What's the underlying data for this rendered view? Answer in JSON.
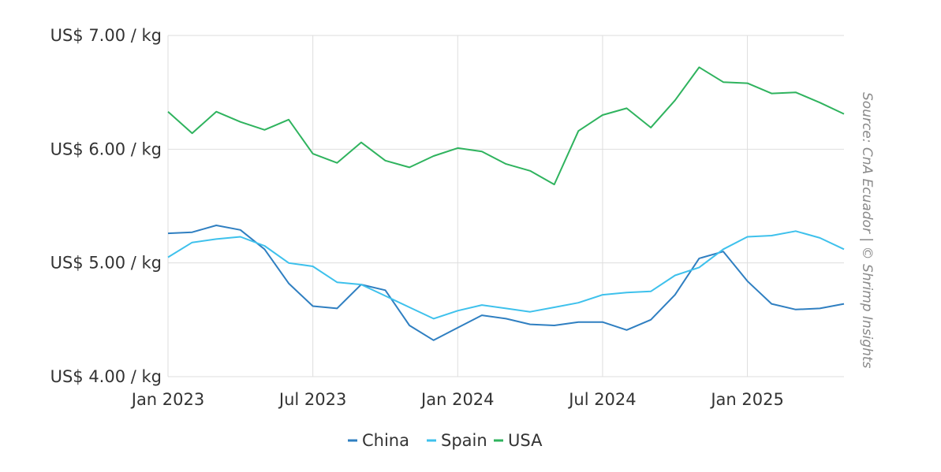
{
  "chart_data": {
    "type": "line",
    "title": "",
    "xlabel": "",
    "ylabel": "",
    "x": [
      "2023-01",
      "2023-02",
      "2023-03",
      "2023-04",
      "2023-05",
      "2023-06",
      "2023-07",
      "2023-08",
      "2023-09",
      "2023-10",
      "2023-11",
      "2023-12",
      "2024-01",
      "2024-02",
      "2024-03",
      "2024-04",
      "2024-05",
      "2024-06",
      "2024-07",
      "2024-08",
      "2024-09",
      "2024-10",
      "2024-11",
      "2024-12",
      "2025-01",
      "2025-02",
      "2025-03",
      "2025-04",
      "2025-05"
    ],
    "x_ticks": [
      {
        "label": "Jan 2023",
        "x": "2023-01"
      },
      {
        "label": "Jul 2023",
        "x": "2023-07"
      },
      {
        "label": "Jan 2024",
        "x": "2024-01"
      },
      {
        "label": "Jul 2024",
        "x": "2024-07"
      },
      {
        "label": "Jan 2025",
        "x": "2025-01"
      }
    ],
    "y_ticks": [
      {
        "label": "US$ 4.00 / kg",
        "value": 4.0
      },
      {
        "label": "US$ 5.00 / kg",
        "value": 5.0
      },
      {
        "label": "US$ 6.00 / kg",
        "value": 6.0
      },
      {
        "label": "US$ 7.00 / kg",
        "value": 7.0
      }
    ],
    "ylim": [
      4.0,
      7.0
    ],
    "grid": true,
    "legend_position": "bottom-center",
    "series": [
      {
        "name": "China",
        "color": "#2f7fc1",
        "values": [
          5.26,
          5.27,
          5.33,
          5.29,
          5.12,
          4.82,
          4.62,
          4.6,
          4.81,
          4.76,
          4.45,
          4.32,
          4.43,
          4.54,
          4.51,
          4.46,
          4.45,
          4.48,
          4.48,
          4.41,
          4.5,
          4.72,
          5.04,
          5.1,
          4.84,
          4.64,
          4.59,
          4.6,
          4.64
        ]
      },
      {
        "name": "Spain",
        "color": "#3ec1ec",
        "values": [
          5.05,
          5.18,
          5.21,
          5.23,
          5.15,
          5.0,
          4.97,
          4.83,
          4.81,
          4.71,
          4.61,
          4.51,
          4.58,
          4.63,
          4.6,
          4.57,
          4.61,
          4.65,
          4.72,
          4.74,
          4.75,
          4.89,
          4.96,
          5.12,
          5.23,
          5.24,
          5.28,
          5.22,
          5.12
        ]
      },
      {
        "name": "USA",
        "color": "#2fb35e",
        "values": [
          6.33,
          6.14,
          6.33,
          6.24,
          6.17,
          6.26,
          5.96,
          5.88,
          6.06,
          5.9,
          5.84,
          5.94,
          6.01,
          5.98,
          5.87,
          5.81,
          5.69,
          6.16,
          6.3,
          6.36,
          6.19,
          6.43,
          6.72,
          6.59,
          6.58,
          6.49,
          6.5,
          6.41,
          6.31
        ]
      }
    ],
    "source_note": "Source: CnA Ecuador | © Shrimp Insights"
  }
}
